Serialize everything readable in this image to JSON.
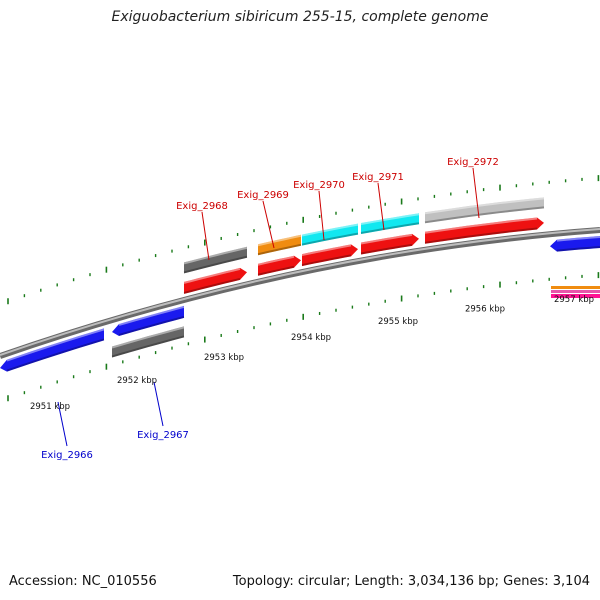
{
  "title": "Exiguobacterium sibiricum 255-15, complete genome",
  "footer": {
    "accession": "Accession: NC_010556",
    "topology": "Topology: circular; Length: 3,034,136 bp; Genes: 3,104"
  },
  "colors": {
    "backbone": "#8a8a8a",
    "ticks": "#1a7a1a",
    "forward_label": "#cc0000",
    "reverse_label": "#0000cc"
  },
  "kbp_labels": [
    {
      "text": "2951 kbp",
      "kbp": 2951
    },
    {
      "text": "2952 kbp",
      "kbp": 2952
    },
    {
      "text": "2953 kbp",
      "kbp": 2953
    },
    {
      "text": "2954 kbp",
      "kbp": 2954
    },
    {
      "text": "2955 kbp",
      "kbp": 2955
    },
    {
      "text": "2956 kbp",
      "kbp": 2956
    },
    {
      "text": "2957 kbp",
      "kbp": 2957
    }
  ],
  "genes": [
    {
      "name": "Exig_2966",
      "strand": "reverse",
      "track_color": "#1a1aee"
    },
    {
      "name": "Exig_2967",
      "strand": "reverse",
      "track_color": "#1a1aee",
      "cog_color": "#666666"
    },
    {
      "name": "Exig_2968",
      "strand": "forward",
      "track_color": "#ee1111",
      "cog_color": "#666666"
    },
    {
      "name": "Exig_2969",
      "strand": "forward",
      "track_color": "#ee1111",
      "cog_color": "#f08c10"
    },
    {
      "name": "Exig_2970",
      "strand": "forward",
      "track_color": "#ee1111",
      "cog_color": "#11e8f0"
    },
    {
      "name": "Exig_2971",
      "strand": "forward",
      "track_color": "#ee1111",
      "cog_color": "#11e8f0"
    },
    {
      "name": "Exig_2972",
      "strand": "forward",
      "track_color": "#ee1111",
      "cog_color": "#c0c0c0"
    }
  ]
}
